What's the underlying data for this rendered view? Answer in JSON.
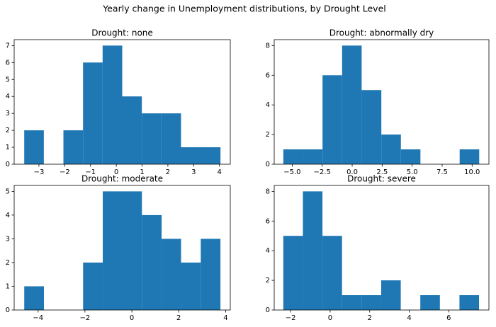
{
  "title": "Yearly change in Unemployment distributions, by Drought Level",
  "chart_data": [
    {
      "type": "histogram",
      "title": "Drought: none",
      "color": "#1f77b4",
      "bins": [
        -3.57,
        -2.81,
        -2.05,
        -1.29,
        -0.53,
        0.23,
        0.99,
        1.75,
        2.51,
        3.28,
        4.04
      ],
      "counts": [
        2,
        0,
        2,
        6,
        7,
        4,
        3,
        3,
        1,
        1
      ],
      "xlim": [
        -3.96,
        4.42
      ],
      "xticks": [
        {
          "value": -3,
          "label": "−3"
        },
        {
          "value": -2,
          "label": "−2"
        },
        {
          "value": -1,
          "label": "−1"
        },
        0,
        1,
        2,
        3,
        4
      ],
      "ylim": [
        0,
        7.35
      ],
      "yticks": [
        0,
        1,
        2,
        3,
        4,
        5,
        6,
        7
      ]
    },
    {
      "type": "histogram",
      "title": "Drought: abnormally dry",
      "color": "#1f77b4",
      "bins": [
        -5.74,
        -4.11,
        -2.47,
        -0.84,
        0.79,
        2.43,
        4.06,
        5.69,
        7.33,
        8.96,
        10.59
      ],
      "counts": [
        1,
        1,
        6,
        8,
        5,
        2,
        1,
        0,
        0,
        1
      ],
      "xlim": [
        -6.5,
        11.4
      ],
      "xticks": [
        {
          "value": -5,
          "label": "−5.0"
        },
        {
          "value": -2.5,
          "label": "−2.5"
        },
        {
          "value": 0,
          "label": "0.0"
        },
        2.5,
        {
          "value": 5,
          "label": "5.0"
        },
        7.5,
        {
          "value": 10,
          "label": "10.0"
        }
      ],
      "ylim": [
        0,
        8.4
      ],
      "yticks": [
        0,
        2,
        4,
        6,
        8
      ]
    },
    {
      "type": "histogram",
      "title": "Drought: moderate",
      "color": "#1f77b4",
      "bins": [
        -4.59,
        -3.75,
        -2.92,
        -2.08,
        -1.24,
        -0.41,
        0.43,
        1.27,
        2.1,
        2.94,
        3.78
      ],
      "counts": [
        1,
        0,
        0,
        2,
        5,
        5,
        4,
        3,
        2,
        3
      ],
      "xlim": [
        -5.02,
        4.2
      ],
      "xticks": [
        {
          "value": -4,
          "label": "−4"
        },
        {
          "value": -2,
          "label": "−2"
        },
        0,
        2,
        4
      ],
      "ylim": [
        0,
        5.25
      ],
      "yticks": [
        0,
        1,
        2,
        3,
        4,
        5
      ]
    },
    {
      "type": "histogram",
      "title": "Drought: severe",
      "color": "#1f77b4",
      "bins": [
        -2.37,
        -1.38,
        -0.39,
        0.6,
        1.59,
        2.58,
        3.57,
        4.56,
        5.55,
        6.54,
        7.53
      ],
      "counts": [
        5,
        8,
        5,
        1,
        1,
        2,
        0,
        1,
        0,
        1
      ],
      "xlim": [
        -2.83,
        8.03
      ],
      "xticks": [
        {
          "value": -2,
          "label": "−2"
        },
        0,
        2,
        4,
        6
      ],
      "ylim": [
        0,
        8.4
      ],
      "yticks": [
        0,
        2,
        4,
        6,
        8
      ]
    }
  ]
}
